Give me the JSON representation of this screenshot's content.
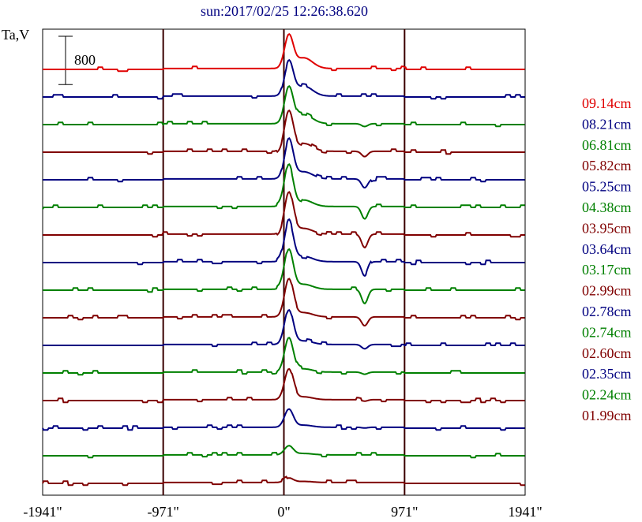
{
  "chart_data": {
    "type": "line",
    "title": "sun:2017/02/25 12:26:38.620",
    "ylabel": "Ta,V",
    "xlabel": "",
    "scale_bar_label": "800",
    "scale_bar_value": 800,
    "xlim": [
      -1941,
      1941
    ],
    "x_ticks": [
      -1941,
      -971,
      0,
      971,
      1941
    ],
    "x_tick_labels": [
      "-1941\"",
      "-971\"",
      "0\"",
      "971\"",
      "1941\""
    ],
    "vertical_lines_at": [
      -971,
      0,
      971
    ],
    "grid": false,
    "legend_placement": "right",
    "series": [
      {
        "name": "09.14cm",
        "color": "#e00000",
        "peak": 900,
        "shoulder": 300,
        "dip": 0
      },
      {
        "name": "08.21cm",
        "color": "#000080",
        "peak": 950,
        "shoulder": 280,
        "dip": 0
      },
      {
        "name": "06.81cm",
        "color": "#008000",
        "peak": 1000,
        "shoulder": 250,
        "dip": 80
      },
      {
        "name": "05.82cm",
        "color": "#800000",
        "peak": 1100,
        "shoulder": 220,
        "dip": 150
      },
      {
        "name": "05.25cm",
        "color": "#000080",
        "peak": 1100,
        "shoulder": 200,
        "dip": 250
      },
      {
        "name": "04.38cm",
        "color": "#008000",
        "peak": 1150,
        "shoulder": 180,
        "dip": 350
      },
      {
        "name": "03.95cm",
        "color": "#800000",
        "peak": 1150,
        "shoulder": 160,
        "dip": 380
      },
      {
        "name": "03.64cm",
        "color": "#000080",
        "peak": 1100,
        "shoulder": 150,
        "dip": 400
      },
      {
        "name": "03.17cm",
        "color": "#008000",
        "peak": 1100,
        "shoulder": 140,
        "dip": 400
      },
      {
        "name": "02.99cm",
        "color": "#800000",
        "peak": 1050,
        "shoulder": 120,
        "dip": 250
      },
      {
        "name": "02.78cm",
        "color": "#000080",
        "peak": 1000,
        "shoulder": 100,
        "dip": 120
      },
      {
        "name": "02.74cm",
        "color": "#008000",
        "peak": 950,
        "shoulder": 90,
        "dip": 60
      },
      {
        "name": "02.60cm",
        "color": "#800000",
        "peak": 850,
        "shoulder": 80,
        "dip": 40
      },
      {
        "name": "02.35cm",
        "color": "#000080",
        "peak": 500,
        "shoulder": 60,
        "dip": 20
      },
      {
        "name": "02.24cm",
        "color": "#008000",
        "peak": 250,
        "shoulder": 40,
        "dip": 0
      },
      {
        "name": "01.99cm",
        "color": "#800000",
        "peak": 120,
        "shoulder": 30,
        "dip": 0
      }
    ]
  }
}
